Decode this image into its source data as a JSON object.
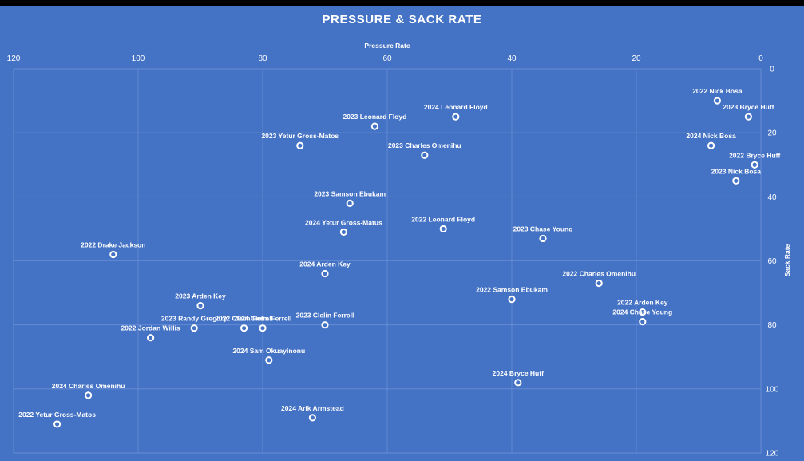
{
  "colors": {
    "background": "#4472c4",
    "grid": "#6a8fd6",
    "text": "#ffffff",
    "marker_fill": "#4472c4",
    "marker_stroke": "#ffffff"
  },
  "chart_data": {
    "type": "scatter",
    "title": "PRESSURE & SACK RATE",
    "xlabel": "Pressure Rate",
    "ylabel": "Sack Rate",
    "xlim": [
      0,
      120
    ],
    "ylim": [
      0,
      120
    ],
    "x_reversed": true,
    "y_reversed": true,
    "x_axis_position": "top",
    "y_axis_position": "right",
    "x_ticks": [
      0,
      20,
      40,
      60,
      80,
      100,
      120
    ],
    "y_ticks": [
      0,
      20,
      40,
      60,
      80,
      100,
      120
    ],
    "grid": true,
    "legend": "none",
    "points": [
      {
        "label": "2022 Nick Bosa",
        "x": 7,
        "y": 10
      },
      {
        "label": "2023 Bryce Huff",
        "x": 2,
        "y": 15
      },
      {
        "label": "2024 Nick Bosa",
        "x": 8,
        "y": 24
      },
      {
        "label": "2022 Bryce Huff",
        "x": 1,
        "y": 30
      },
      {
        "label": "2023 Nick Bosa",
        "x": 4,
        "y": 35
      },
      {
        "label": "2024 Leonard Floyd",
        "x": 49,
        "y": 15
      },
      {
        "label": "2023 Leonard Floyd",
        "x": 62,
        "y": 18
      },
      {
        "label": "2023 Yetur Gross-Matos",
        "x": 74,
        "y": 24
      },
      {
        "label": "2023 Charles Omenihu",
        "x": 54,
        "y": 27
      },
      {
        "label": "2023 Samson Ebukam",
        "x": 66,
        "y": 42
      },
      {
        "label": "2024 Yetur Gross-Matus",
        "x": 67,
        "y": 51
      },
      {
        "label": "2022 Leonard Floyd",
        "x": 51,
        "y": 50
      },
      {
        "label": "2023 Chase Young",
        "x": 35,
        "y": 53
      },
      {
        "label": "2022 Drake Jackson",
        "x": 104,
        "y": 58
      },
      {
        "label": "2024 Arden Key",
        "x": 70,
        "y": 64
      },
      {
        "label": "2022 Charles Omenihu",
        "x": 26,
        "y": 67
      },
      {
        "label": "2022 Samson Ebukam",
        "x": 40,
        "y": 72
      },
      {
        "label": "2023 Arden Key",
        "x": 90,
        "y": 74
      },
      {
        "label": "2022 Arden Key",
        "x": 19,
        "y": 76
      },
      {
        "label": "2024 Chase Young",
        "x": 19,
        "y": 79
      },
      {
        "label": "2023 Randy Gregory",
        "x": 91,
        "y": 81
      },
      {
        "label": "2022 Clelin Ferrell",
        "x": 83,
        "y": 81
      },
      {
        "label": "2024 Clelin Ferrell",
        "x": 80,
        "y": 81
      },
      {
        "label": "2023 Clelin Ferrell",
        "x": 70,
        "y": 80
      },
      {
        "label": "2022 Jordan Willis",
        "x": 98,
        "y": 84
      },
      {
        "label": "2024 Sam Okuayinonu",
        "x": 79,
        "y": 91
      },
      {
        "label": "2024 Bryce Huff",
        "x": 39,
        "y": 98
      },
      {
        "label": "2024 Charles Omenihu",
        "x": 108,
        "y": 102
      },
      {
        "label": "2024 Arik Armstead",
        "x": 72,
        "y": 109
      },
      {
        "label": "2022 Yetur Gross-Matos",
        "x": 113,
        "y": 111
      }
    ]
  }
}
